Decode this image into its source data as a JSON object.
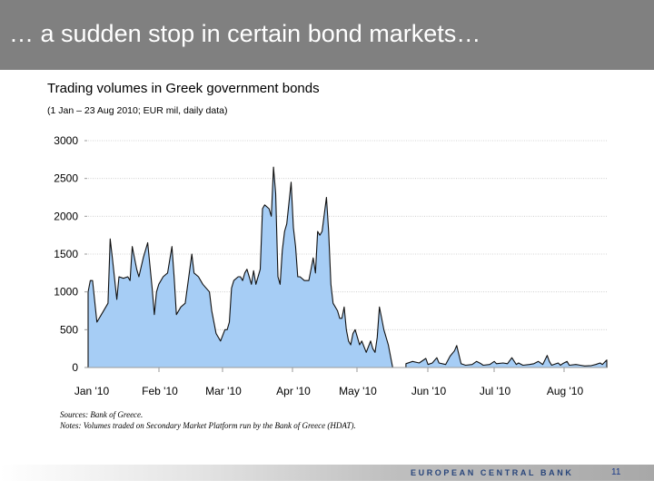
{
  "slide": {
    "title": "… a sudden stop in certain bond markets…",
    "footer_org": "EUROPEAN CENTRAL BANK",
    "page_number": "11",
    "colors": {
      "title_bar": "#808080",
      "area_fill": "#a6cdf5",
      "area_line": "#101010",
      "ecb_text": "#27447a"
    }
  },
  "chart_data": {
    "type": "area",
    "title": "Trading volumes in Greek government bonds",
    "subtitle": "(1 Jan – 23 Aug 2010; EUR mil, daily data)",
    "xlabel": "",
    "ylabel": "",
    "ylim": [
      0,
      3000
    ],
    "yticks": [
      "3000",
      "2500",
      "2000",
      "1500",
      "1000",
      "500",
      "0"
    ],
    "ytick_values": [
      3000,
      2500,
      2000,
      1500,
      1000,
      500,
      0
    ],
    "months": [
      "Jan '10",
      "Feb '10",
      "Mar '10",
      "Apr '10",
      "May '10",
      "Jun '10",
      "Jul '10",
      "Aug '10"
    ],
    "grid": true,
    "x_day_range": [
      0,
      235
    ],
    "series": [
      {
        "name": "Trading volume",
        "segments": [
          [
            [
              0,
              0
            ],
            [
              0,
              1000
            ],
            [
              1,
              1150
            ],
            [
              2,
              1150
            ],
            [
              4,
              600
            ],
            [
              6,
              700
            ],
            [
              9,
              850
            ],
            [
              10,
              1700
            ],
            [
              11,
              1450
            ],
            [
              13,
              900
            ],
            [
              14,
              1200
            ],
            [
              16,
              1180
            ],
            [
              18,
              1200
            ],
            [
              19,
              1150
            ],
            [
              20,
              1600
            ],
            [
              22,
              1300
            ],
            [
              23,
              1200
            ],
            [
              25,
              1450
            ],
            [
              27,
              1650
            ],
            [
              29,
              1050
            ],
            [
              30,
              700
            ],
            [
              31,
              1000
            ],
            [
              32,
              1100
            ],
            [
              34,
              1200
            ],
            [
              36,
              1250
            ],
            [
              38,
              1600
            ],
            [
              39,
              1180
            ],
            [
              40,
              700
            ],
            [
              42,
              800
            ],
            [
              44,
              850
            ],
            [
              47,
              1500
            ],
            [
              48,
              1250
            ],
            [
              50,
              1200
            ],
            [
              52,
              1100
            ],
            [
              55,
              1000
            ],
            [
              56,
              750
            ],
            [
              57,
              600
            ],
            [
              58,
              450
            ],
            [
              60,
              350
            ],
            [
              62,
              500
            ],
            [
              63,
              500
            ],
            [
              64,
              600
            ],
            [
              65,
              1050
            ],
            [
              66,
              1150
            ],
            [
              68,
              1200
            ],
            [
              69,
              1200
            ],
            [
              70,
              1150
            ],
            [
              71,
              1250
            ],
            [
              72,
              1300
            ],
            [
              74,
              1100
            ],
            [
              75,
              1280
            ],
            [
              76,
              1100
            ],
            [
              78,
              1300
            ],
            [
              79,
              2100
            ],
            [
              80,
              2150
            ],
            [
              82,
              2100
            ],
            [
              83,
              2000
            ],
            [
              84,
              2650
            ],
            [
              85,
              2300
            ],
            [
              86,
              1200
            ],
            [
              87,
              1100
            ],
            [
              88,
              1550
            ],
            [
              89,
              1800
            ],
            [
              90,
              1900
            ],
            [
              92,
              2450
            ],
            [
              93,
              1850
            ],
            [
              94,
              1600
            ],
            [
              95,
              1200
            ],
            [
              96,
              1200
            ],
            [
              98,
              1150
            ],
            [
              100,
              1150
            ],
            [
              102,
              1450
            ],
            [
              103,
              1250
            ],
            [
              104,
              1800
            ],
            [
              105,
              1750
            ],
            [
              106,
              1800
            ],
            [
              108,
              2250
            ],
            [
              109,
              1800
            ],
            [
              110,
              1100
            ],
            [
              111,
              850
            ],
            [
              113,
              750
            ],
            [
              114,
              650
            ],
            [
              115,
              650
            ],
            [
              116,
              800
            ],
            [
              117,
              500
            ],
            [
              118,
              350
            ],
            [
              119,
              300
            ],
            [
              120,
              450
            ],
            [
              121,
              500
            ],
            [
              123,
              300
            ],
            [
              124,
              350
            ],
            [
              126,
              200
            ],
            [
              128,
              350
            ],
            [
              129,
              250
            ],
            [
              130,
              200
            ],
            [
              131,
              400
            ],
            [
              132,
              800
            ],
            [
              133,
              650
            ],
            [
              134,
              500
            ],
            [
              136,
              300
            ],
            [
              137,
              150
            ],
            [
              138,
              0
            ]
          ],
          [
            [
              144,
              0
            ],
            [
              144,
              50
            ],
            [
              147,
              80
            ],
            [
              150,
              60
            ],
            [
              153,
              120
            ],
            [
              154,
              40
            ],
            [
              156,
              60
            ],
            [
              158,
              130
            ],
            [
              159,
              60
            ],
            [
              162,
              40
            ],
            [
              164,
              150
            ],
            [
              166,
              220
            ],
            [
              167,
              290
            ],
            [
              169,
              50
            ],
            [
              171,
              30
            ],
            [
              174,
              40
            ],
            [
              176,
              80
            ],
            [
              178,
              50
            ],
            [
              179,
              30
            ],
            [
              182,
              40
            ],
            [
              184,
              80
            ],
            [
              185,
              50
            ],
            [
              188,
              60
            ],
            [
              190,
              50
            ],
            [
              192,
              130
            ],
            [
              194,
              40
            ],
            [
              195,
              60
            ],
            [
              197,
              30
            ],
            [
              200,
              40
            ],
            [
              202,
              50
            ],
            [
              204,
              80
            ],
            [
              206,
              40
            ],
            [
              208,
              160
            ],
            [
              209,
              80
            ],
            [
              210,
              30
            ],
            [
              213,
              60
            ],
            [
              214,
              30
            ],
            [
              215,
              50
            ],
            [
              217,
              80
            ],
            [
              218,
              30
            ],
            [
              221,
              40
            ],
            [
              223,
              30
            ],
            [
              225,
              20
            ],
            [
              228,
              25
            ],
            [
              230,
              40
            ],
            [
              232,
              60
            ],
            [
              233,
              40
            ],
            [
              235,
              100
            ],
            [
              235,
              0
            ]
          ]
        ]
      }
    ]
  },
  "notes": {
    "sources": "Sources:  Bank of Greece.",
    "notes": "Notes: Volumes traded on Secondary Market Platform run by the Bank of Greece (HDAT)."
  }
}
